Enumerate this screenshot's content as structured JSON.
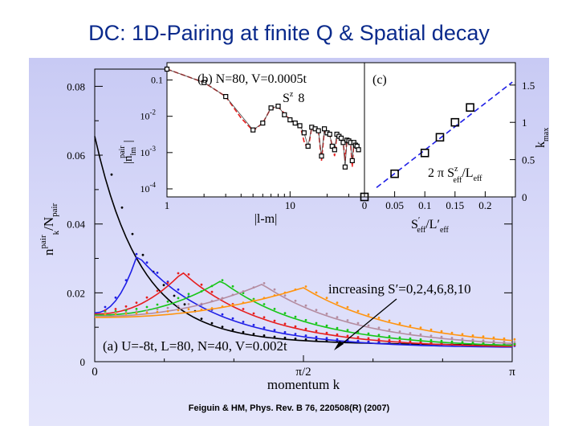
{
  "slide": {
    "title": "DC: 1D-Pairing at finite Q & Spatial decay",
    "citation": "Feiguin & HM, Phys. Rev. B 76, 220508(R) (2007)"
  },
  "chart_data": [
    {
      "id": "main",
      "type": "line",
      "annotation_panel": "(a) U=-8t, L=80, N=40, V=0.002t",
      "annotation_arrow": "increasing S′=0,2,4,6,8,10",
      "xlabel": "momentum k",
      "ylabel_main": "n",
      "ylabel_sup": "pair",
      "ylabel_sub": "k",
      "ylabel_div": "/N",
      "ylabel_div_sub": "pair",
      "xlim": [
        0,
        3.1416
      ],
      "ylim": [
        0,
        0.085
      ],
      "xticks": [
        {
          "v": 0,
          "label": "0"
        },
        {
          "v": 1.5708,
          "label": "π/2"
        },
        {
          "v": 3.1416,
          "label": "π"
        }
      ],
      "yticks": [
        {
          "v": 0,
          "label": "0"
        },
        {
          "v": 0.02,
          "label": "0.02"
        },
        {
          "v": 0.04,
          "label": "0.04"
        },
        {
          "v": 0.06,
          "label": "0.06"
        },
        {
          "v": 0.08,
          "label": "0.08"
        }
      ],
      "colors": [
        "#000000",
        "#1f1fe6",
        "#e61e1e",
        "#17c617",
        "#b48ca0",
        "#ff9410"
      ],
      "series": [
        {
          "peak": 0.0,
          "height": 0.062
        },
        {
          "peak": 0.32,
          "height": 0.031
        },
        {
          "peak": 0.66,
          "height": 0.026
        },
        {
          "peak": 0.95,
          "height": 0.0235
        },
        {
          "peak": 1.26,
          "height": 0.0225
        },
        {
          "peak": 1.57,
          "height": 0.0215
        }
      ]
    },
    {
      "id": "inset_b",
      "type": "line",
      "xscale": "log",
      "yscale": "log",
      "label": "(b) N=80, V=0.0005t",
      "label_sz": "S",
      "label_sz_sup": "z",
      "label_sz_val": "8",
      "xlabel": "|l-m|",
      "ylabel_main": "|n",
      "ylabel_sub": "lm",
      "ylabel_sup": "pair",
      "ylabel_end": "|",
      "xticks": [
        {
          "v": 1,
          "label": "1"
        },
        {
          "v": 10,
          "label": "10"
        }
      ],
      "yticks": [
        {
          "v": 0.1,
          "label": "0.1"
        },
        {
          "v": 0.01,
          "label": "10-2"
        },
        {
          "v": 0.001,
          "label": "10-3"
        },
        {
          "v": 0.0001,
          "label": "10-4"
        }
      ],
      "x": [
        1,
        2,
        3,
        4,
        5,
        6,
        7,
        8,
        9,
        10,
        11,
        12,
        13,
        14,
        15,
        16,
        17,
        18,
        19,
        20,
        21,
        22,
        23,
        24,
        25,
        26,
        27,
        28,
        29,
        30,
        31,
        32,
        33,
        34,
        35,
        36
      ],
      "y": [
        0.2,
        0.085,
        0.035,
        0.009,
        0.004,
        0.0065,
        0.017,
        0.018,
        0.012,
        0.008,
        0.0065,
        0.006,
        0.002,
        0.0012,
        0.005,
        0.0045,
        0.004,
        0.0006,
        0.004,
        0.0035,
        0.0032,
        0.0015,
        0.0008,
        0.003,
        0.0028,
        0.0025,
        0.0019,
        0.0006,
        0.0022,
        0.0021,
        0.0019,
        0.0004,
        0.0019,
        0.0016,
        0.0015,
        0.0012
      ],
      "markers_x": [
        1,
        2,
        3,
        5,
        6,
        7,
        8,
        9,
        10,
        11,
        12,
        13,
        14,
        15,
        16,
        17,
        18,
        19,
        20,
        21,
        22,
        23,
        24,
        25,
        26,
        27,
        28,
        29,
        30,
        31,
        32,
        33,
        34,
        35,
        36
      ],
      "markers_y": [
        0.2,
        0.085,
        0.035,
        0.0042,
        0.0065,
        0.017,
        0.019,
        0.011,
        0.008,
        0.0065,
        0.0055,
        0.0035,
        0.0015,
        0.005,
        0.0045,
        0.004,
        0.0008,
        0.0045,
        0.0035,
        0.0032,
        0.0015,
        0.0012,
        0.0032,
        0.0028,
        0.0025,
        0.0019,
        0.0004,
        0.0022,
        0.0021,
        0.0019,
        0.0006,
        0.0019,
        0.0016,
        0.0015,
        0.0012
      ]
    },
    {
      "id": "inset_c",
      "type": "scatter",
      "label": "(c)",
      "fit_label": "2 π S",
      "fit_label_sup": "z",
      "fit_label_sub": "eff",
      "fit_label_div": "/L",
      "fit_label_div_sub": "eff",
      "xlabel": "S",
      "xlabel_sup": "′",
      "xlabel_sub": "eff",
      "xlabel_div": "/L′",
      "xlabel_div_sub": "eff",
      "ylabel_right": "k",
      "ylabel_right_sub": "max",
      "xlim": [
        0,
        0.25
      ],
      "ylim": [
        0,
        1.8
      ],
      "xticks": [
        {
          "v": 0,
          "label": "0"
        },
        {
          "v": 0.05,
          "label": "0.05"
        },
        {
          "v": 0.1,
          "label": "0.1"
        },
        {
          "v": 0.15,
          "label": "0.15"
        },
        {
          "v": 0.2,
          "label": "0.2"
        }
      ],
      "yticks": [
        {
          "v": 0,
          "label": "0"
        },
        {
          "v": 0.5,
          "label": "0.5"
        },
        {
          "v": 1,
          "label": "1"
        },
        {
          "v": 1.5,
          "label": "1.5"
        }
      ],
      "x": [
        0,
        0.05,
        0.1,
        0.125,
        0.15,
        0.175
      ],
      "y": [
        0,
        0.31,
        0.59,
        0.8,
        1.0,
        1.2
      ],
      "fit_slope": 6.2832
    }
  ]
}
